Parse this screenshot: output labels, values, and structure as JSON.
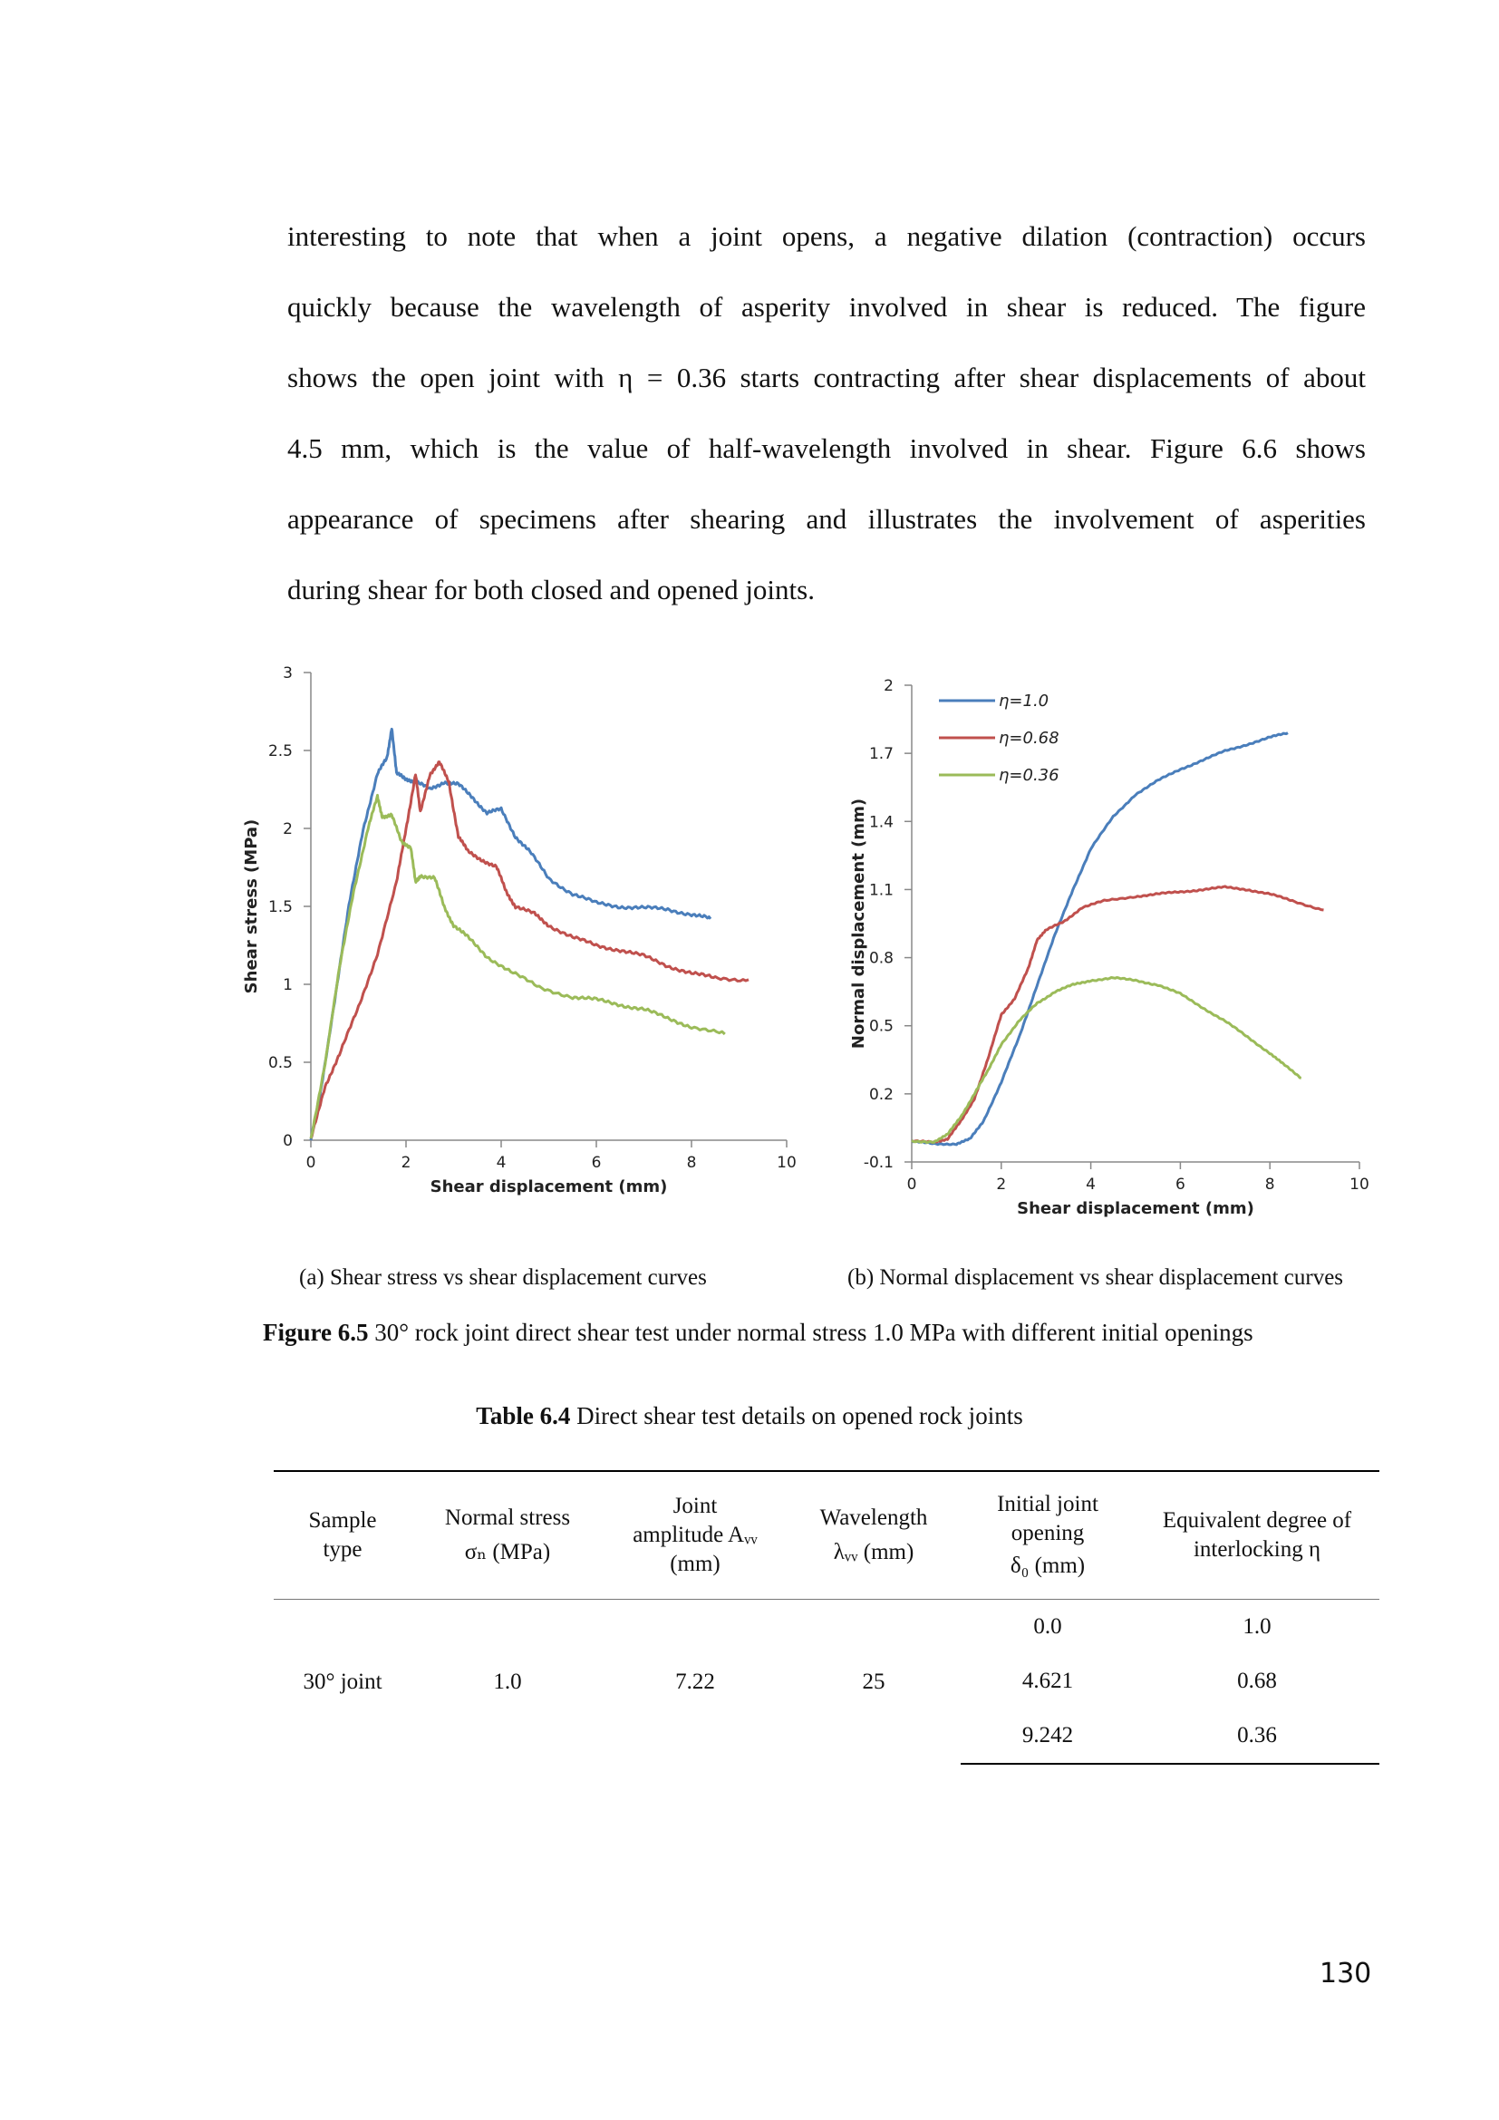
{
  "paragraph": {
    "lines": [
      "interesting to note that when a joint opens, a negative dilation (contraction) occurs",
      "quickly because the wavelength of asperity involved in shear is reduced. The figure",
      "shows the open joint with η = 0.36 starts contracting after shear displacements of about",
      "4.5 mm, which is the value of half-wavelength involved in shear. Figure 6.6 shows",
      "appearance of specimens after shearing and illustrates the involvement of asperities",
      "during shear for both closed and opened joints."
    ]
  },
  "chart_data": [
    {
      "type": "line",
      "xlabel": "Shear displacement (mm)",
      "ylabel": "Shear stress (MPa)",
      "xlim": [
        0,
        10
      ],
      "ylim": [
        0,
        3
      ],
      "xticks": [
        "0",
        "2",
        "4",
        "6",
        "8",
        "10"
      ],
      "yticks": [
        "0",
        "0.5",
        "1",
        "1.5",
        "2",
        "2.5",
        "3"
      ],
      "series": [
        {
          "color": "#4a7ebb",
          "x": [
            0,
            0.2,
            0.5,
            0.8,
            1.1,
            1.4,
            1.6,
            1.7,
            1.8,
            2.0,
            2.2,
            2.5,
            2.8,
            3.1,
            3.4,
            3.7,
            4.0,
            4.3,
            4.6,
            5.0,
            5.5,
            6.0,
            6.5,
            7.0,
            7.5,
            8.0,
            8.4
          ],
          "y": [
            0,
            0.3,
            0.9,
            1.5,
            2.0,
            2.35,
            2.45,
            2.65,
            2.35,
            2.32,
            2.3,
            2.25,
            2.3,
            2.28,
            2.2,
            2.1,
            2.12,
            1.95,
            1.85,
            1.68,
            1.58,
            1.52,
            1.5,
            1.49,
            1.48,
            1.45,
            1.42
          ]
        },
        {
          "color": "#c0504d",
          "x": [
            0,
            0.3,
            0.6,
            1.0,
            1.4,
            1.8,
            2.0,
            2.2,
            2.3,
            2.5,
            2.7,
            2.9,
            3.1,
            3.3,
            3.6,
            3.9,
            4.1,
            4.3,
            4.7,
            5.0,
            5.5,
            6.0,
            6.5,
            7.0,
            7.5,
            8.0,
            8.5,
            9.2
          ],
          "y": [
            0,
            0.35,
            0.55,
            0.85,
            1.2,
            1.65,
            2.0,
            2.35,
            2.1,
            2.35,
            2.42,
            2.3,
            1.95,
            1.85,
            1.8,
            1.75,
            1.6,
            1.5,
            1.45,
            1.38,
            1.3,
            1.25,
            1.22,
            1.18,
            1.12,
            1.07,
            1.04,
            1.03
          ]
        },
        {
          "color": "#9bbb59",
          "x": [
            0,
            0.3,
            0.6,
            0.9,
            1.2,
            1.4,
            1.5,
            1.7,
            1.9,
            2.1,
            2.2,
            2.3,
            2.6,
            2.8,
            3.0,
            3.3,
            3.7,
            4.2,
            4.8,
            5.5,
            6.0,
            6.5,
            7.0,
            7.5,
            8.0,
            8.7
          ],
          "y": [
            0,
            0.5,
            1.1,
            1.6,
            2.0,
            2.2,
            2.08,
            2.08,
            1.92,
            1.88,
            1.65,
            1.7,
            1.68,
            1.5,
            1.38,
            1.3,
            1.18,
            1.08,
            0.98,
            0.92,
            0.9,
            0.87,
            0.84,
            0.78,
            0.73,
            0.68
          ]
        }
      ]
    },
    {
      "type": "line",
      "xlabel": "Shear displacement (mm)",
      "ylabel": "Normal displacement (mm)",
      "xlim": [
        0,
        10
      ],
      "ylim": [
        -0.1,
        2
      ],
      "xticks": [
        "0",
        "2",
        "4",
        "6",
        "8",
        "10"
      ],
      "yticks": [
        "-0.1",
        "0.2",
        "0.5",
        "0.8",
        "1.1",
        "1.4",
        "1.7",
        "2"
      ],
      "legend": "top-left",
      "series": [
        {
          "name": "η=1.0",
          "color": "#4a7ebb",
          "x": [
            0,
            0.5,
            1.0,
            1.3,
            1.6,
            2.0,
            2.4,
            2.8,
            3.2,
            3.6,
            4.0,
            4.5,
            5.0,
            5.5,
            6.0,
            6.5,
            7.0,
            7.5,
            8.0,
            8.4
          ],
          "y": [
            -0.01,
            -0.02,
            -0.02,
            0.0,
            0.08,
            0.25,
            0.45,
            0.68,
            0.9,
            1.1,
            1.28,
            1.42,
            1.52,
            1.58,
            1.63,
            1.67,
            1.71,
            1.74,
            1.77,
            1.79
          ]
        },
        {
          "name": "η=0.68",
          "color": "#c0504d",
          "x": [
            0,
            0.5,
            0.8,
            1.1,
            1.4,
            1.7,
            2.0,
            2.3,
            2.6,
            2.8,
            3.0,
            3.4,
            3.8,
            4.3,
            5.0,
            5.5,
            6.0,
            6.5,
            7.0,
            7.5,
            8.0,
            8.5,
            9.2
          ],
          "y": [
            -0.01,
            -0.01,
            0.0,
            0.08,
            0.18,
            0.35,
            0.55,
            0.62,
            0.75,
            0.88,
            0.92,
            0.96,
            1.02,
            1.05,
            1.07,
            1.08,
            1.09,
            1.1,
            1.11,
            1.1,
            1.08,
            1.05,
            1.01
          ]
        },
        {
          "name": "η=0.36",
          "color": "#9bbb59",
          "x": [
            0,
            0.5,
            0.8,
            1.1,
            1.4,
            1.7,
            2.0,
            2.4,
            2.8,
            3.2,
            3.6,
            4.0,
            4.5,
            5.0,
            5.5,
            6.0,
            6.5,
            7.0,
            7.5,
            8.0,
            8.3,
            8.7
          ],
          "y": [
            -0.01,
            -0.01,
            0.02,
            0.1,
            0.2,
            0.3,
            0.42,
            0.52,
            0.6,
            0.65,
            0.68,
            0.7,
            0.71,
            0.7,
            0.68,
            0.64,
            0.58,
            0.52,
            0.45,
            0.38,
            0.33,
            0.27
          ]
        }
      ]
    }
  ],
  "subcaptions": {
    "a": "(a) Shear stress vs shear displacement curves",
    "b": "(b)  Normal displacement vs shear displacement curves"
  },
  "figure_caption": {
    "label": "Figure 6.5",
    "text": " 30° rock joint direct shear test under normal stress 1.0 MPa with different initial openings"
  },
  "table_caption": {
    "label": "Table 6.4",
    "text": " Direct shear test details on opened rock joints"
  },
  "table": {
    "headers": [
      {
        "line1": "Sample",
        "line2": "type"
      },
      {
        "line1": "Normal stress",
        "line2": "σₙ (MPa)"
      },
      {
        "line1": "Joint",
        "line2": "amplitude Aᵥᵥ",
        "line3": "(mm)"
      },
      {
        "line1": "Wavelength",
        "line2": "λᵥᵥ (mm)"
      },
      {
        "line1": "Initial joint",
        "line2": "opening",
        "line3": "δ₀ (mm)"
      },
      {
        "line1": "Equivalent degree of",
        "line2": "interlocking η"
      }
    ],
    "sample_type": "30° joint",
    "normal_stress": "1.0",
    "amplitude": "7.22",
    "wavelength": "25",
    "openings": [
      "0.0",
      "4.621",
      "9.242"
    ],
    "interlocking": [
      "1.0",
      "0.68",
      "0.36"
    ]
  },
  "page_number": "130"
}
